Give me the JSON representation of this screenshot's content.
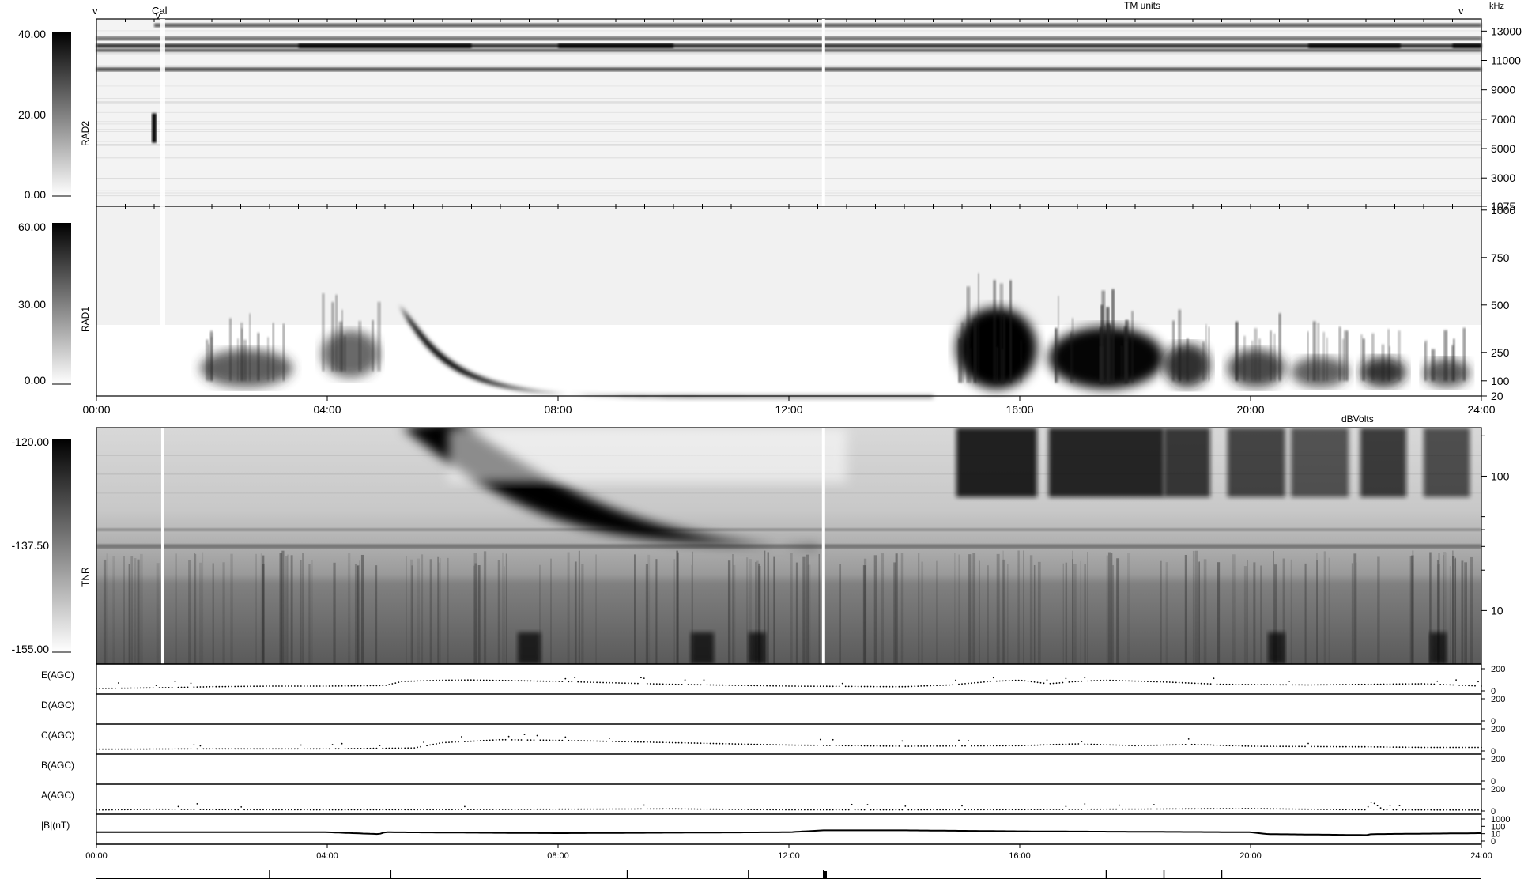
{
  "header": {
    "left_marker": "v",
    "right_marker": "v",
    "cal_label": "Cal",
    "cal_marker": "v",
    "center_text": "TM units",
    "right_unit": "kHz",
    "tnr_unit": "dBVolts"
  },
  "colors": {
    "signal_dark": "#000000",
    "background": "#ffffff",
    "gap_line": "#ffffff",
    "tnr_floor": "#808080"
  },
  "chart_data": [
    {
      "type": "heatmap",
      "id": "rad2",
      "ylabel": "RAD2",
      "right_unit": "kHz",
      "colorbar_ticks": [
        "40.00",
        "20.00",
        "0.00"
      ],
      "colorbar_range": [
        0,
        40
      ],
      "freq_ticks": [
        "13000",
        "11000",
        "9000",
        "7000",
        "5000",
        "3000",
        "1075"
      ],
      "freq_values": [
        13000,
        11000,
        9000,
        7000,
        5000,
        3000,
        1075
      ],
      "freq_range": [
        1075,
        13825
      ],
      "bands_khz": [
        {
          "f": 13400,
          "hours": [
            1.0,
            24.0
          ],
          "strength": 0.55
        },
        {
          "f": 12500,
          "hours": [
            0.0,
            24.0
          ],
          "strength": 0.35
        },
        {
          "f": 12000,
          "hours": [
            0.0,
            24.0
          ],
          "strength": 0.85
        },
        {
          "f": 11700,
          "hours": [
            0.0,
            24.0
          ],
          "strength": 0.4
        },
        {
          "f": 10400,
          "hours": [
            0.0,
            24.0
          ],
          "strength": 0.6
        }
      ],
      "cal_burst": {
        "hour": 1.0,
        "f_range": [
          5400,
          7400
        ],
        "strength": 0.9
      }
    },
    {
      "type": "heatmap",
      "id": "rad1",
      "ylabel": "RAD1",
      "colorbar_ticks": [
        "60.00",
        "30.00",
        "0.00"
      ],
      "colorbar_range": [
        0,
        60
      ],
      "freq_ticks": [
        "1000",
        "750",
        "500",
        "250",
        "100",
        "20"
      ],
      "freq_values": [
        1000,
        750,
        500,
        250,
        100,
        20
      ],
      "freq_range": [
        20,
        1020
      ],
      "x_ticks": [
        "00:00",
        "04:00",
        "08:00",
        "12:00",
        "16:00",
        "20:00",
        "24:00"
      ],
      "x_hours": [
        0,
        4,
        8,
        12,
        16,
        20,
        24
      ],
      "type_iii_burst": {
        "onset_hour": 5.25,
        "end_hour": 14.5,
        "start_khz": 500,
        "end_khz": 20
      },
      "storms": [
        {
          "t0": 14.9,
          "t1": 16.3,
          "f_low": 90,
          "f_high": 520,
          "strength": 1.0
        },
        {
          "t0": 16.5,
          "t1": 18.5,
          "f_low": 90,
          "f_high": 420,
          "strength": 0.95
        },
        {
          "t0": 18.5,
          "t1": 19.3,
          "f_low": 100,
          "f_high": 330,
          "strength": 0.75
        },
        {
          "t0": 19.6,
          "t1": 20.6,
          "f_low": 100,
          "f_high": 300,
          "strength": 0.6
        },
        {
          "t0": 20.7,
          "t1": 21.7,
          "f_low": 100,
          "f_high": 260,
          "strength": 0.45
        },
        {
          "t0": 21.9,
          "t1": 22.7,
          "f_low": 100,
          "f_high": 260,
          "strength": 0.7
        },
        {
          "t0": 23.0,
          "t1": 23.8,
          "f_low": 100,
          "f_high": 250,
          "strength": 0.5
        },
        {
          "t0": 1.8,
          "t1": 3.4,
          "f_low": 100,
          "f_high": 300,
          "strength": 0.45
        },
        {
          "t0": 3.9,
          "t1": 4.9,
          "f_low": 150,
          "f_high": 400,
          "strength": 0.4
        }
      ]
    },
    {
      "type": "heatmap",
      "id": "tnr",
      "ylabel": "TNR",
      "right_unit": "dBVolts",
      "colorbar_ticks": [
        "-120.00",
        "-137.50",
        "-155.00"
      ],
      "colorbar_range": [
        -155,
        -120
      ],
      "freq_ticks": [
        "100",
        "10"
      ],
      "freq_values": [
        100,
        10
      ],
      "freq_range_khz": [
        4,
        230
      ],
      "log_scale": true,
      "type_iii_burst": {
        "onset_hour": 5.3,
        "end_hour": 12.5,
        "start_khz": 230,
        "end_khz": 30
      },
      "data_gaps_hours": [
        1.15,
        12.6
      ]
    },
    {
      "type": "line",
      "id": "agc",
      "x_ticks": [
        "00:00",
        "04:00",
        "08:00",
        "12:00",
        "16:00",
        "20:00",
        "24:00"
      ],
      "x_hours": [
        0,
        4,
        8,
        12,
        16,
        20,
        24
      ],
      "series": [
        {
          "name": "E(AGC)",
          "y_ticks": [
            "200",
            "0"
          ],
          "ylim": [
            0,
            200
          ],
          "x": [
            0,
            1,
            2,
            3,
            4,
            5,
            5.3,
            6,
            6.5,
            8,
            10,
            12,
            14,
            14.8,
            15.5,
            16,
            16.5,
            17,
            17.5,
            18.5,
            19.5,
            21,
            22,
            23,
            24
          ],
          "y": [
            20,
            25,
            35,
            40,
            40,
            45,
            80,
            90,
            92,
            80,
            55,
            40,
            35,
            50,
            80,
            90,
            60,
            80,
            90,
            75,
            55,
            50,
            55,
            60,
            40
          ]
        },
        {
          "name": "D(AGC)",
          "y_ticks": [
            "200",
            "0"
          ],
          "ylim": [
            0,
            200
          ],
          "x": [],
          "y": []
        },
        {
          "name": "C(AGC)",
          "y_ticks": [
            "200",
            "0"
          ],
          "ylim": [
            0,
            200
          ],
          "x": [
            0,
            2,
            4,
            5.5,
            6,
            7,
            8,
            10,
            12,
            14,
            16,
            17,
            18,
            19,
            20,
            22,
            23,
            24
          ],
          "y": [
            15,
            18,
            18,
            25,
            70,
            95,
            90,
            70,
            50,
            40,
            45,
            60,
            45,
            55,
            40,
            35,
            30,
            30
          ]
        },
        {
          "name": "B(AGC)",
          "y_ticks": [
            "200",
            "0"
          ],
          "ylim": [
            0,
            200
          ],
          "x": [],
          "y": []
        },
        {
          "name": "A(AGC)",
          "y_ticks": [
            "200",
            "0"
          ],
          "ylim": [
            0,
            200
          ],
          "x": [
            0,
            1,
            2,
            4,
            6,
            10,
            12,
            14,
            16,
            20,
            22,
            22.1,
            22.3,
            24
          ],
          "y": [
            8,
            15,
            12,
            10,
            12,
            18,
            10,
            10,
            12,
            20,
            10,
            80,
            10,
            8
          ]
        },
        {
          "name": "|B|(nT)",
          "y_ticks": [
            "1000",
            "100",
            "10",
            "0"
          ],
          "log_scale": true,
          "x": [
            0,
            4,
            4.9,
            5,
            8,
            12,
            12.6,
            14,
            16,
            20,
            20.3,
            22,
            22.1,
            24
          ],
          "y": [
            6,
            6,
            4,
            6,
            5,
            6,
            8,
            8,
            7,
            6,
            4,
            3,
            4,
            5
          ]
        }
      ]
    }
  ]
}
